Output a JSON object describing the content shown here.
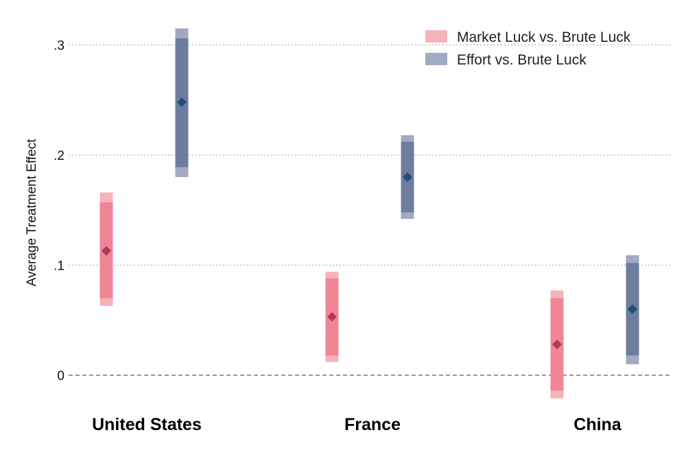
{
  "chart_data": {
    "type": "interval",
    "title": "",
    "ylabel": "Average Treatment Effect",
    "xlabel": "",
    "ylim": [
      -0.03,
      0.33
    ],
    "yticks": [
      0,
      0.1,
      0.2,
      0.3
    ],
    "ytick_labels": [
      "0",
      ".1",
      ".2",
      ".3"
    ],
    "grid": "horizontal dotted",
    "reference_line": 0,
    "legend_position": "top-right",
    "categories": [
      "United States",
      "France",
      "China"
    ],
    "series": [
      {
        "name": "Market Luck vs. Brute Luck",
        "color_outer": "#f5b3bb",
        "color_inner": "#ef8595",
        "color_point": "#b5365a",
        "points": [
          {
            "estimate": 0.113,
            "ci_inner": [
              0.07,
              0.157
            ],
            "ci_outer": [
              0.063,
              0.166
            ]
          },
          {
            "estimate": 0.053,
            "ci_inner": [
              0.018,
              0.088
            ],
            "ci_outer": [
              0.012,
              0.094
            ]
          },
          {
            "estimate": 0.028,
            "ci_inner": [
              -0.014,
              0.07
            ],
            "ci_outer": [
              -0.021,
              0.077
            ]
          }
        ]
      },
      {
        "name": "Effort vs. Brute Luck",
        "color_outer": "#a2a9c3",
        "color_inner": "#6e7c9e",
        "color_point": "#1f4e7a",
        "points": [
          {
            "estimate": 0.248,
            "ci_inner": [
              0.189,
              0.306
            ],
            "ci_outer": [
              0.18,
              0.315
            ]
          },
          {
            "estimate": 0.18,
            "ci_inner": [
              0.148,
              0.212
            ],
            "ci_outer": [
              0.142,
              0.218
            ]
          },
          {
            "estimate": 0.06,
            "ci_inner": [
              0.018,
              0.102
            ],
            "ci_outer": [
              0.01,
              0.109
            ]
          }
        ]
      }
    ]
  }
}
